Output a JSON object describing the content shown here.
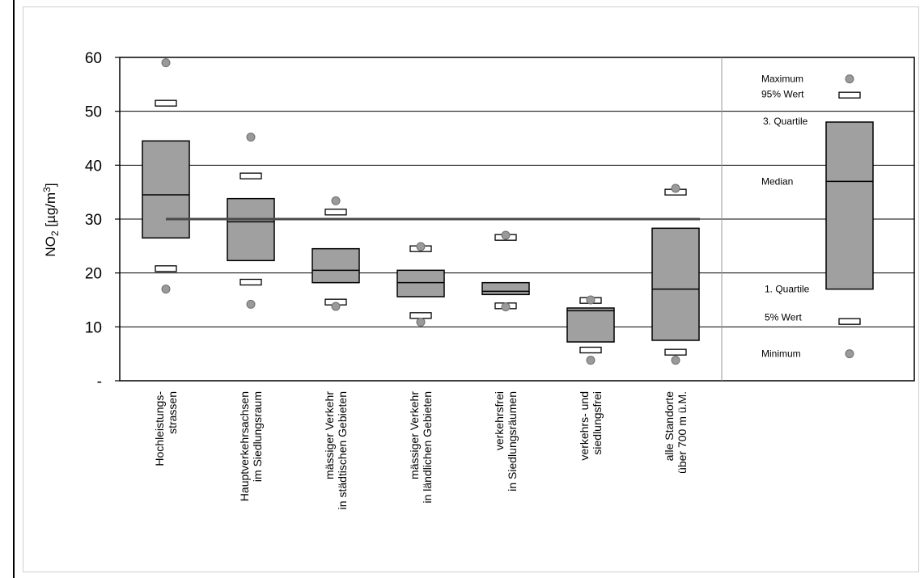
{
  "chart_data": {
    "type": "boxplot",
    "ylabel": "NO",
    "ylabel_sub": "2",
    "ylabel_unit": " [µg/m",
    "ylabel_sup": "3",
    "ylabel_close": "]",
    "ylim": [
      0,
      60
    ],
    "y_ticks": [
      {
        "value": 60,
        "label": "60"
      },
      {
        "value": 50,
        "label": "50"
      },
      {
        "value": 40,
        "label": "40"
      },
      {
        "value": 30,
        "label": "30"
      },
      {
        "value": 20,
        "label": "20"
      },
      {
        "value": 10,
        "label": "10"
      },
      {
        "value": 0,
        "label": "-"
      }
    ],
    "grid": true,
    "reference_line": {
      "value": 30,
      "from_category": 0,
      "to_category": 6
    },
    "categories": [
      {
        "lines": [
          "Hochleistungs-",
          "strassen"
        ],
        "min": 17,
        "p5": 20.8,
        "q1": 26.5,
        "median": 34.5,
        "q3": 44.5,
        "p95": 51.5,
        "max": 59
      },
      {
        "lines": [
          "Hauptverkehrsachsen",
          "im Siedlungsraum"
        ],
        "min": 14.2,
        "p5": 18.3,
        "q1": 22.3,
        "median": 29.5,
        "q3": 33.8,
        "p95": 38,
        "max": 45.2
      },
      {
        "lines": [
          "mässiger Verkehr",
          "in städtischen Gebieten"
        ],
        "min": 13.8,
        "p5": 14.6,
        "q1": 18.2,
        "median": 20.5,
        "q3": 24.5,
        "p95": 31.3,
        "max": 33.4
      },
      {
        "lines": [
          "mässiger Verkehr",
          "in ländlichen Gebieten"
        ],
        "min": 10.9,
        "p5": 12.1,
        "q1": 15.6,
        "median": 18.2,
        "q3": 20.5,
        "p95": 24.5,
        "max": 24.9
      },
      {
        "lines": [
          "verkehrsfrei",
          "in Siedlungsräumen"
        ],
        "min": 13.7,
        "p5": 13.9,
        "q1": 16,
        "median": 16.6,
        "q3": 18.2,
        "p95": 26.6,
        "max": 27
      },
      {
        "lines": [
          "verkehrs- und",
          "siedlungsfrei"
        ],
        "min": 3.8,
        "p5": 5.7,
        "q1": 7.2,
        "median": 13,
        "q3": 13.5,
        "p95": 14.9,
        "max": 15
      },
      {
        "lines": [
          "alle Standorte",
          "über 700 m ü.M."
        ],
        "min": 3.8,
        "p5": 5.3,
        "q1": 7.5,
        "median": 17,
        "q3": 28.3,
        "p95": 35,
        "max": 35.7
      }
    ],
    "legend": {
      "labels": {
        "max": "Maximum",
        "p95": "95% Wert",
        "q3": "3. Quartile",
        "median": "Median",
        "q1": "1. Quartile",
        "p5": "5% Wert",
        "min": "Minimum"
      },
      "example": {
        "min": 5,
        "p5": 11,
        "q1": 17,
        "median": 37,
        "q3": 48,
        "p95": 53,
        "max": 56
      }
    },
    "colors": {
      "box": "#a0a0a0",
      "border": "#000000",
      "point": "#9a9a9a",
      "reference": "#4a4a4a",
      "grid": "#000000"
    }
  }
}
